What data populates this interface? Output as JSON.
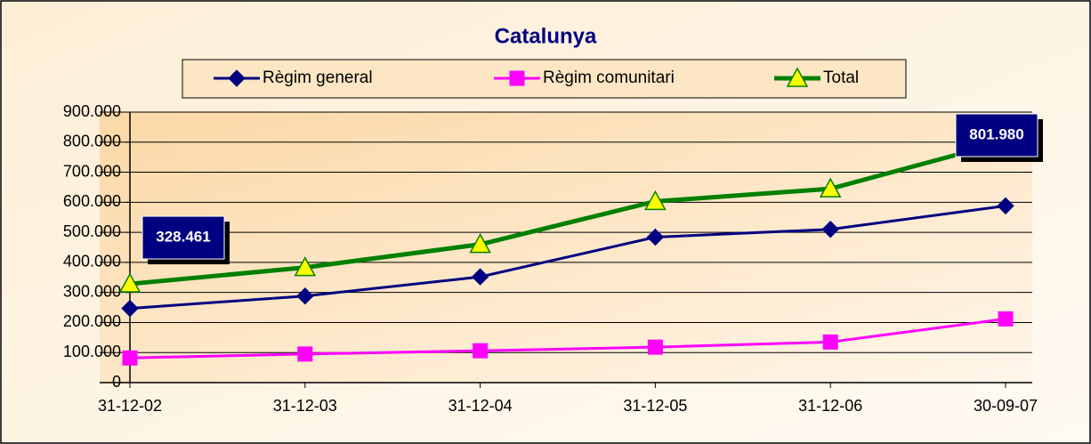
{
  "chart_data": {
    "type": "line",
    "title": "Catalunya",
    "categories": [
      "31-12-02",
      "31-12-03",
      "31-12-04",
      "31-12-05",
      "31-12-06",
      "30-09-07"
    ],
    "series": [
      {
        "name": "Règim general",
        "color": "#000080",
        "marker": "diamond",
        "values": [
          247000,
          288000,
          352000,
          484000,
          510000,
          588000
        ]
      },
      {
        "name": "Règim comunitari",
        "color": "#ff00ff",
        "marker": "square",
        "values": [
          82000,
          95000,
          106000,
          118000,
          135000,
          212000
        ]
      },
      {
        "name": "Total",
        "color": "#008000",
        "marker": "triangle",
        "values": [
          328461,
          383000,
          460000,
          603000,
          645000,
          801980
        ],
        "value_labels": [
          "328.461",
          null,
          null,
          null,
          null,
          "801.980"
        ]
      }
    ],
    "ylim": [
      0,
      900000
    ],
    "yticks": [
      0,
      {
        "value": 100000,
        "label": "100.000"
      },
      {
        "value": 200000,
        "label": "200.000"
      },
      {
        "value": 300000,
        "label": "300.000"
      },
      {
        "value": 400000,
        "label": "400.000"
      },
      {
        "value": 500000,
        "label": "500.000"
      },
      {
        "value": 600000,
        "label": "600.000"
      },
      {
        "value": 700000,
        "label": "700.000"
      },
      {
        "value": 800000,
        "label": "800.000"
      },
      {
        "value": 900000,
        "label": "900.000"
      }
    ],
    "grid": true,
    "legend": "top"
  }
}
